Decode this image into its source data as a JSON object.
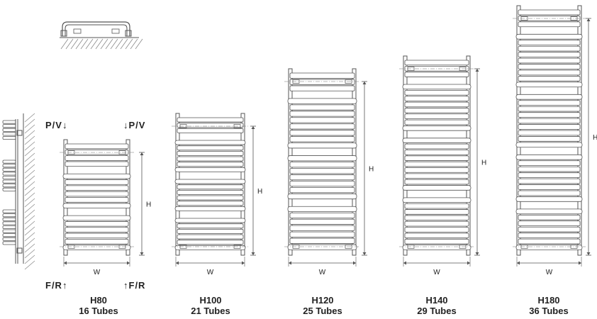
{
  "colors": {
    "line": "#555555",
    "hatch": "#8a8a8a",
    "text": "#222222"
  },
  "flow_labels": {
    "top_left": "P/V↓",
    "top_right": "↓P/V",
    "bottom_left": "F/R↑",
    "bottom_right": "↑F/R"
  },
  "dim_labels": {
    "height": "H",
    "width": "W"
  },
  "models": [
    {
      "name": "H80",
      "tubes": "16 Tubes",
      "groups": [
        4,
        6,
        6
      ]
    },
    {
      "name": "H100",
      "tubes": "21 Tubes",
      "groups": [
        3,
        6,
        6,
        6
      ]
    },
    {
      "name": "H120",
      "tubes": "25 Tubes",
      "groups": [
        3,
        8,
        7,
        7
      ]
    },
    {
      "name": "H140",
      "tubes": "29 Tubes",
      "groups": [
        3,
        8,
        9,
        9
      ]
    },
    {
      "name": "H180",
      "tubes": "36 Tubes",
      "groups": [
        3,
        9,
        9,
        8,
        7
      ]
    }
  ]
}
